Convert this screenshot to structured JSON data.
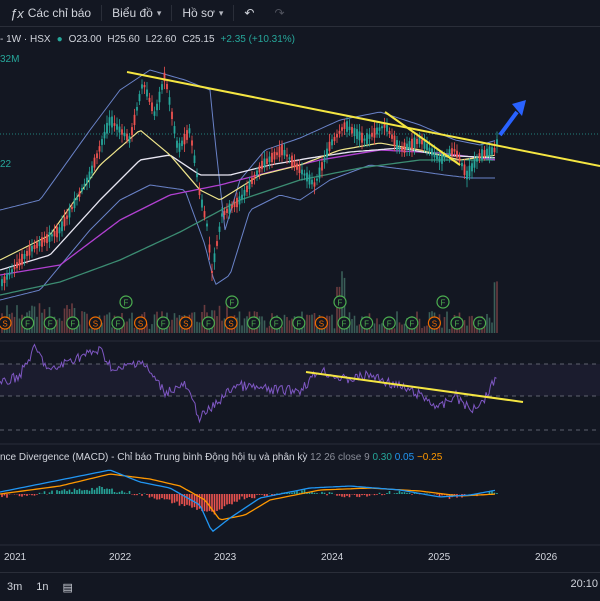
{
  "toolbar": {
    "indicators_label": "Các chỉ báo",
    "chart_type_label": "Biểu đồ",
    "profile_label": "Hồ sơ"
  },
  "symbol": {
    "title": "- 1W · HSX",
    "open": "O23.00",
    "high": "H25.60",
    "low": "L22.60",
    "close": "C25.15",
    "change": "+2.35 (+10.31%)"
  },
  "volume_label": "32M",
  "price_label": "22",
  "macd": {
    "title": "nce Divergence (MACD) - Chỉ báo Trung bình Động hội tụ và phân kỳ",
    "params": "12 26 close 9",
    "histogram": "0.30",
    "macd": "0.05",
    "signal": "−0.25"
  },
  "x_axis": [
    "2021",
    "2022",
    "2023",
    "2024",
    "2025",
    "2026"
  ],
  "bottom": {
    "range_1": "3m",
    "range_2": "1n",
    "clock": "20:10"
  },
  "events": [
    "S",
    "F",
    "F",
    "F",
    "S",
    "F",
    "S",
    "F",
    "S",
    "F",
    "S",
    "F",
    "F",
    "F",
    "S",
    "F",
    "F",
    "F",
    "F",
    "S",
    "F",
    "F"
  ],
  "events_top": [
    "F",
    "F",
    "F",
    "F"
  ],
  "colors": {
    "up": "#26a69a",
    "down": "#ef5350",
    "trend": "#f5e642",
    "rsi": "#7e57c2",
    "macd": "#2196f3",
    "signal": "#ff9800"
  }
}
